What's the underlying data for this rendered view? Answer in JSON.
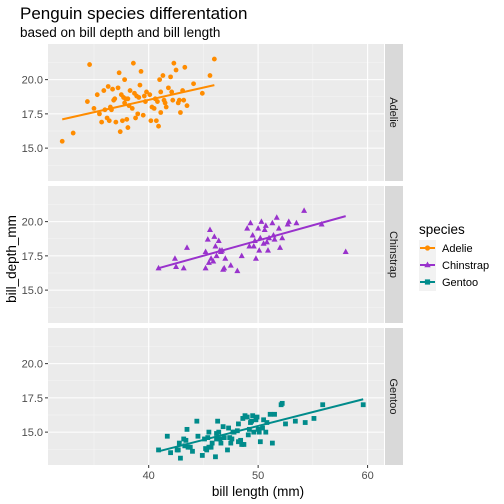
{
  "chart_data": {
    "type": "scatter",
    "title": "Penguin species differentation",
    "subtitle": "based on bill depth and bill length",
    "xlabel": "bill length (mm)",
    "ylabel": "bill_depth_mm",
    "xlim": [
      30.8,
      61.5
    ],
    "ylim": [
      12.6,
      22.6
    ],
    "x_ticks": [
      40,
      50,
      60
    ],
    "y_ticks": [
      15.0,
      17.5,
      20.0
    ],
    "x_tick_labels": [
      "40",
      "50",
      "60"
    ],
    "y_tick_labels": [
      "15.0",
      "17.5",
      "20.0"
    ],
    "grid": true,
    "facets": [
      "Adelie",
      "Chinstrap",
      "Gentoo"
    ],
    "legend": {
      "title": "species",
      "position": "right",
      "entries": [
        "Adelie",
        "Chinstrap",
        "Gentoo"
      ]
    },
    "series": [
      {
        "name": "Adelie",
        "color": "#FF8C00",
        "marker": "circle",
        "trend": {
          "x": [
            32.1,
            46.0
          ],
          "y": [
            17.1,
            19.6
          ]
        },
        "points": [
          [
            32.1,
            15.5
          ],
          [
            33.1,
            16.1
          ],
          [
            34.6,
            21.1
          ],
          [
            34.4,
            18.4
          ],
          [
            35.0,
            17.9
          ],
          [
            35.3,
            18.9
          ],
          [
            35.5,
            17.5
          ],
          [
            35.7,
            16.9
          ],
          [
            35.9,
            19.2
          ],
          [
            36.0,
            17.8
          ],
          [
            36.2,
            17.2
          ],
          [
            36.3,
            19.5
          ],
          [
            36.4,
            17.0
          ],
          [
            36.5,
            18.0
          ],
          [
            36.6,
            17.8
          ],
          [
            36.7,
            19.3
          ],
          [
            36.8,
            18.5
          ],
          [
            36.9,
            18.6
          ],
          [
            37.0,
            16.9
          ],
          [
            37.2,
            19.4
          ],
          [
            37.3,
            20.5
          ],
          [
            37.4,
            16.2
          ],
          [
            37.5,
            18.9
          ],
          [
            37.6,
            17.0
          ],
          [
            37.7,
            18.7
          ],
          [
            37.8,
            18.3
          ],
          [
            37.8,
            20.0
          ],
          [
            37.9,
            18.6
          ],
          [
            38.0,
            17.1
          ],
          [
            38.1,
            18.6
          ],
          [
            38.1,
            16.5
          ],
          [
            38.2,
            18.1
          ],
          [
            38.3,
            19.2
          ],
          [
            38.5,
            17.9
          ],
          [
            38.6,
            21.2
          ],
          [
            38.7,
            19.0
          ],
          [
            38.8,
            17.2
          ],
          [
            38.9,
            18.8
          ],
          [
            39.0,
            17.5
          ],
          [
            39.1,
            18.7
          ],
          [
            39.2,
            19.6
          ],
          [
            39.3,
            20.6
          ],
          [
            39.5,
            17.4
          ],
          [
            39.6,
            18.8
          ],
          [
            39.7,
            18.4
          ],
          [
            39.8,
            19.1
          ],
          [
            40.1,
            18.9
          ],
          [
            40.2,
            17.0
          ],
          [
            40.3,
            18.0
          ],
          [
            40.5,
            17.9
          ],
          [
            40.6,
            18.6
          ],
          [
            40.7,
            17.0
          ],
          [
            40.8,
            18.4
          ],
          [
            40.9,
            16.6
          ],
          [
            41.0,
            20.0
          ],
          [
            41.1,
            17.6
          ],
          [
            41.1,
            19.1
          ],
          [
            41.3,
            20.3
          ],
          [
            41.4,
            18.5
          ],
          [
            41.5,
            18.3
          ],
          [
            41.6,
            18.0
          ],
          [
            41.8,
            19.4
          ],
          [
            42.0,
            20.2
          ],
          [
            42.1,
            19.1
          ],
          [
            42.2,
            18.5
          ],
          [
            42.3,
            21.2
          ],
          [
            42.5,
            20.7
          ],
          [
            42.7,
            18.3
          ],
          [
            42.8,
            18.5
          ],
          [
            42.9,
            17.6
          ],
          [
            43.1,
            19.2
          ],
          [
            43.2,
            18.5
          ],
          [
            43.3,
            20.9
          ],
          [
            43.5,
            18.1
          ],
          [
            44.1,
            19.7
          ],
          [
            44.9,
            19.0
          ],
          [
            45.6,
            20.3
          ],
          [
            46.0,
            21.5
          ]
        ]
      },
      {
        "name": "Chinstrap",
        "color": "#9932CC",
        "marker": "triangle",
        "trend": {
          "x": [
            40.9,
            58.0
          ],
          "y": [
            16.6,
            20.4
          ]
        },
        "points": [
          [
            40.9,
            16.6
          ],
          [
            42.4,
            17.3
          ],
          [
            42.5,
            16.7
          ],
          [
            43.2,
            16.6
          ],
          [
            43.5,
            18.1
          ],
          [
            45.2,
            16.6
          ],
          [
            45.2,
            17.8
          ],
          [
            45.4,
            18.7
          ],
          [
            45.5,
            17.0
          ],
          [
            45.6,
            19.4
          ],
          [
            45.7,
            17.3
          ],
          [
            45.9,
            17.1
          ],
          [
            46.0,
            18.9
          ],
          [
            46.1,
            18.2
          ],
          [
            46.2,
            17.5
          ],
          [
            46.4,
            18.6
          ],
          [
            46.5,
            17.9
          ],
          [
            46.6,
            17.8
          ],
          [
            46.7,
            17.9
          ],
          [
            46.8,
            16.5
          ],
          [
            46.9,
            16.6
          ],
          [
            47.0,
            17.3
          ],
          [
            47.5,
            16.8
          ],
          [
            48.1,
            16.4
          ],
          [
            48.5,
            17.5
          ],
          [
            49.0,
            19.5
          ],
          [
            49.2,
            18.2
          ],
          [
            49.3,
            19.9
          ],
          [
            49.5,
            19.0
          ],
          [
            49.6,
            18.2
          ],
          [
            49.7,
            18.6
          ],
          [
            49.8,
            17.3
          ],
          [
            50.0,
            19.5
          ],
          [
            50.1,
            17.9
          ],
          [
            50.2,
            18.8
          ],
          [
            50.3,
            20.0
          ],
          [
            50.5,
            18.4
          ],
          [
            50.6,
            19.4
          ],
          [
            50.7,
            19.7
          ],
          [
            50.8,
            18.5
          ],
          [
            50.9,
            17.9
          ],
          [
            51.0,
            18.8
          ],
          [
            51.3,
            19.9
          ],
          [
            51.4,
            19.0
          ],
          [
            51.5,
            18.7
          ],
          [
            51.7,
            20.3
          ],
          [
            51.9,
            19.5
          ],
          [
            52.0,
            18.1
          ],
          [
            52.2,
            18.8
          ],
          [
            52.7,
            19.8
          ],
          [
            52.8,
            20.0
          ],
          [
            53.5,
            19.9
          ],
          [
            54.2,
            20.8
          ],
          [
            55.8,
            19.8
          ],
          [
            58.0,
            17.8
          ]
        ]
      },
      {
        "name": "Gentoo",
        "color": "#008B8B",
        "marker": "square",
        "trend": {
          "x": [
            40.9,
            59.6
          ],
          "y": [
            13.6,
            17.4
          ]
        },
        "points": [
          [
            40.9,
            13.7
          ],
          [
            41.7,
            14.7
          ],
          [
            42.0,
            13.5
          ],
          [
            42.6,
            13.7
          ],
          [
            42.7,
            13.7
          ],
          [
            42.8,
            14.2
          ],
          [
            42.9,
            13.1
          ],
          [
            43.2,
            14.5
          ],
          [
            43.3,
            14.0
          ],
          [
            43.4,
            14.4
          ],
          [
            43.5,
            15.2
          ],
          [
            43.6,
            13.9
          ],
          [
            43.8,
            13.9
          ],
          [
            44.0,
            13.6
          ],
          [
            44.4,
            15.8
          ],
          [
            44.5,
            14.7
          ],
          [
            44.9,
            13.3
          ],
          [
            45.1,
            14.5
          ],
          [
            45.2,
            13.8
          ],
          [
            45.3,
            13.7
          ],
          [
            45.4,
            14.6
          ],
          [
            45.5,
            13.9
          ],
          [
            45.5,
            15.0
          ],
          [
            45.7,
            13.9
          ],
          [
            45.8,
            14.2
          ],
          [
            46.1,
            13.2
          ],
          [
            46.2,
            14.5
          ],
          [
            46.2,
            14.9
          ],
          [
            46.3,
            15.8
          ],
          [
            46.4,
            15.0
          ],
          [
            46.5,
            14.5
          ],
          [
            46.6,
            14.2
          ],
          [
            46.8,
            15.4
          ],
          [
            46.9,
            14.6
          ],
          [
            47.2,
            13.7
          ],
          [
            47.3,
            15.3
          ],
          [
            47.4,
            14.6
          ],
          [
            47.5,
            14.2
          ],
          [
            47.6,
            14.5
          ],
          [
            47.7,
            15.0
          ],
          [
            47.8,
            15.0
          ],
          [
            48.1,
            15.1
          ],
          [
            48.2,
            14.3
          ],
          [
            48.2,
            15.6
          ],
          [
            48.4,
            14.4
          ],
          [
            48.5,
            14.1
          ],
          [
            48.6,
            16.0
          ],
          [
            48.7,
            14.1
          ],
          [
            48.8,
            16.2
          ],
          [
            49.0,
            16.1
          ],
          [
            49.1,
            14.8
          ],
          [
            49.2,
            15.2
          ],
          [
            49.3,
            15.7
          ],
          [
            49.4,
            15.8
          ],
          [
            49.5,
            16.2
          ],
          [
            49.6,
            15.0
          ],
          [
            49.8,
            15.9
          ],
          [
            49.9,
            16.1
          ],
          [
            50.0,
            15.2
          ],
          [
            50.1,
            15.0
          ],
          [
            50.2,
            14.3
          ],
          [
            50.4,
            15.3
          ],
          [
            50.5,
            15.9
          ],
          [
            50.7,
            15.0
          ],
          [
            50.8,
            15.7
          ],
          [
            51.1,
            16.3
          ],
          [
            51.3,
            14.2
          ],
          [
            51.5,
            16.3
          ],
          [
            52.1,
            17.0
          ],
          [
            52.2,
            17.1
          ],
          [
            52.5,
            15.6
          ],
          [
            53.4,
            15.8
          ],
          [
            54.3,
            15.7
          ],
          [
            55.1,
            16.0
          ],
          [
            55.9,
            17.0
          ],
          [
            59.6,
            17.0
          ]
        ]
      }
    ]
  }
}
